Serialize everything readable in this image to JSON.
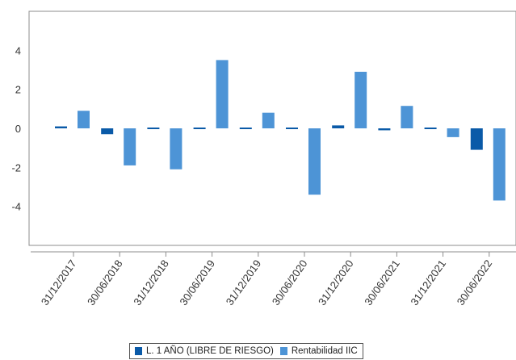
{
  "chart_data": {
    "type": "bar",
    "categories": [
      "31/12/2017",
      "30/06/2018",
      "31/12/2018",
      "30/06/2019",
      "31/12/2019",
      "30/06/2020",
      "31/12/2020",
      "30/06/2021",
      "31/12/2021",
      "30/06/2022"
    ],
    "series": [
      {
        "name": "L. 1 AÑO (LIBRE DE RIESGO)",
        "color": "#0a5aa8",
        "values": [
          0.1,
          -0.3,
          -0.05,
          0.03,
          0.05,
          0.05,
          0.15,
          -0.1,
          0.02,
          -1.1
        ]
      },
      {
        "name": "Rentabilidad IIC",
        "color": "#4d94d6",
        "values": [
          0.9,
          -1.9,
          -2.1,
          3.5,
          0.8,
          -3.4,
          2.9,
          1.15,
          -0.45,
          -3.7
        ]
      }
    ],
    "ylim": [
      -6,
      6
    ],
    "yticks": [
      "4",
      "2",
      "0",
      "-2",
      "-4"
    ],
    "title": "",
    "xlabel": "",
    "ylabel": "",
    "grid": false,
    "legend_position": "bottom"
  }
}
